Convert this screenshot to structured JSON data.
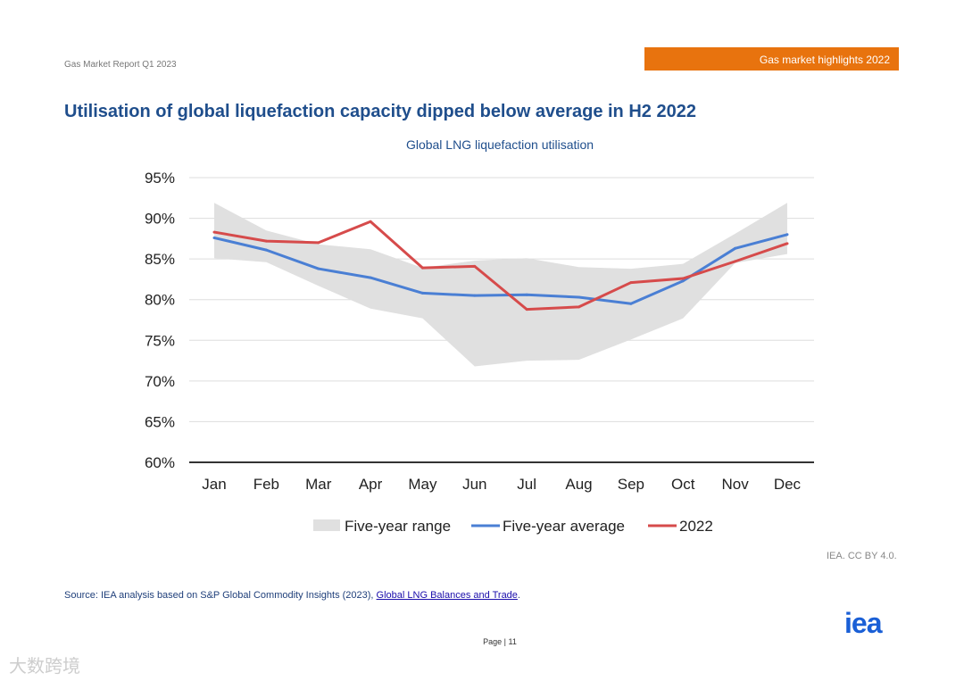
{
  "header": {
    "report_name": "Gas Market Report Q1 2023",
    "section_badge": "Gas market highlights 2022"
  },
  "page_title": "Utilisation of global liquefaction capacity dipped below average in H2 2022",
  "chart_data": {
    "type": "line",
    "title": "Global LNG liquefaction utilisation",
    "xlabel": "",
    "ylabel": "",
    "categories": [
      "Jan",
      "Feb",
      "Mar",
      "Apr",
      "May",
      "Jun",
      "Jul",
      "Aug",
      "Sep",
      "Oct",
      "Nov",
      "Dec"
    ],
    "ylim": [
      60,
      95
    ],
    "yticks": [
      "60%",
      "65%",
      "70%",
      "75%",
      "80%",
      "85%",
      "90%",
      "95%"
    ],
    "ytick_values": [
      60,
      65,
      70,
      75,
      80,
      85,
      90,
      95
    ],
    "grid": true,
    "legend_position": "bottom",
    "range": {
      "name": "Five-year range",
      "color": "#e0e0e0",
      "upper": [
        91.9,
        88.5,
        86.8,
        86.2,
        83.9,
        84.8,
        85.1,
        84.0,
        83.8,
        84.4,
        88.1,
        91.9
      ],
      "lower": [
        85.1,
        84.6,
        81.7,
        78.9,
        77.7,
        71.8,
        72.5,
        72.6,
        75.1,
        77.7,
        84.5,
        85.6
      ]
    },
    "series": [
      {
        "name": "Five-year average",
        "color": "#4a7fd4",
        "values": [
          87.6,
          86.1,
          83.8,
          82.7,
          80.8,
          80.5,
          80.6,
          80.3,
          79.5,
          82.3,
          86.3,
          88.0
        ]
      },
      {
        "name": "2022",
        "color": "#d64b4b",
        "values": [
          88.3,
          87.2,
          87.0,
          89.6,
          83.9,
          84.1,
          78.8,
          79.1,
          82.1,
          82.6,
          84.7,
          86.9
        ]
      }
    ]
  },
  "credit": "IEA. CC BY 4.0.",
  "source": {
    "prefix": "Source: IEA analysis based on S&P Global Commodity Insights (2023), ",
    "link": "Global LNG Balances and Trade",
    "suffix": "."
  },
  "page_number": "Page | 11",
  "logo": "iea",
  "watermark": "大数跨境"
}
